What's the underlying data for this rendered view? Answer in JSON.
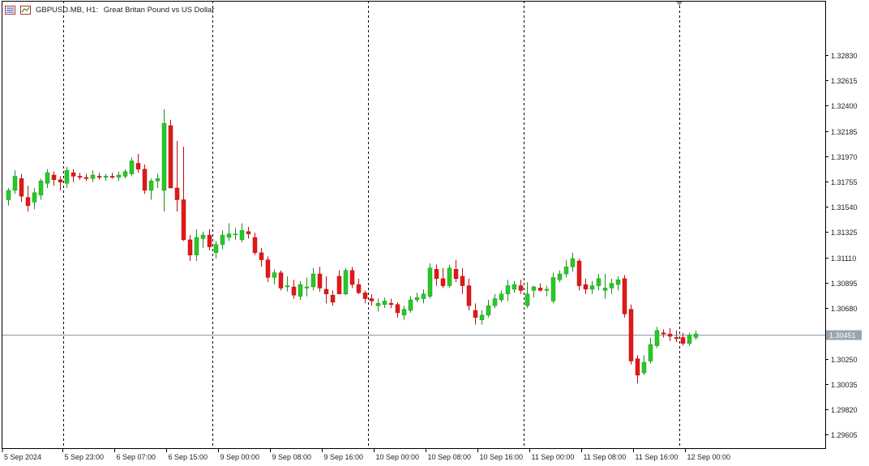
{
  "header": {
    "symbol": "GBPUSD.MB",
    "timeframe": "H1:",
    "description": "Great Britan Pound vs US Dollar"
  },
  "colors": {
    "bull": "#28c828",
    "bear": "#e01818",
    "wick": "#3a3a3a",
    "bid_line": "#8899aa",
    "grid": "#000000",
    "price_label_bg": "#9aa4ae"
  },
  "current_price": {
    "value": 1.30451,
    "label": "1.30451"
  },
  "chart_data": {
    "type": "candlestick",
    "ylim": [
      1.2949,
      1.3329
    ],
    "y_ticks": [
      "1.32830",
      "1.32615",
      "1.32400",
      "1.32185",
      "1.31970",
      "1.31755",
      "1.31540",
      "1.31325",
      "1.31110",
      "1.30895",
      "1.30680",
      "1.30250",
      "1.30035",
      "1.29820",
      "1.29605"
    ],
    "x_ticks": [
      {
        "label": "5 Sep 2024",
        "index": 0
      },
      {
        "label": "5 Sep 23:00",
        "index": 9
      },
      {
        "label": "6 Sep 07:00",
        "index": 17
      },
      {
        "label": "6 Sep 15:00",
        "index": 25
      },
      {
        "label": "9 Sep 00:00",
        "index": 33
      },
      {
        "label": "9 Sep 08:00",
        "index": 41
      },
      {
        "label": "9 Sep 16:00",
        "index": 49
      },
      {
        "label": "10 Sep 00:00",
        "index": 57
      },
      {
        "label": "10 Sep 08:00",
        "index": 65
      },
      {
        "label": "10 Sep 16:00",
        "index": 73
      },
      {
        "label": "11 Sep 00:00",
        "index": 81
      },
      {
        "label": "11 Sep 08:00",
        "index": 89
      },
      {
        "label": "11 Sep 16:00",
        "index": 97
      },
      {
        "label": "12 Sep 00:00",
        "index": 105
      }
    ],
    "separators": [
      9,
      32,
      56,
      80,
      104
    ],
    "candles": [
      [
        1.316,
        1.317,
        1.3155,
        1.3168
      ],
      [
        1.3168,
        1.3185,
        1.3165,
        1.318
      ],
      [
        1.3178,
        1.3182,
        1.3158,
        1.3163
      ],
      [
        1.3162,
        1.3172,
        1.315,
        1.3155
      ],
      [
        1.3158,
        1.317,
        1.3152,
        1.3166
      ],
      [
        1.3164,
        1.3178,
        1.316,
        1.3176
      ],
      [
        1.3174,
        1.3186,
        1.317,
        1.3183
      ],
      [
        1.3181,
        1.3184,
        1.3172,
        1.3177
      ],
      [
        1.3177,
        1.318,
        1.3168,
        1.3175
      ],
      [
        1.3174,
        1.3188,
        1.317,
        1.3185
      ],
      [
        1.3183,
        1.3186,
        1.3175,
        1.318
      ],
      [
        1.318,
        1.3183,
        1.3177,
        1.3179
      ],
      [
        1.3179,
        1.3182,
        1.3176,
        1.3178
      ],
      [
        1.3178,
        1.3185,
        1.3175,
        1.3181
      ],
      [
        1.318,
        1.3183,
        1.3177,
        1.3179
      ],
      [
        1.3179,
        1.3182,
        1.3176,
        1.318
      ],
      [
        1.318,
        1.3183,
        1.3178,
        1.3179
      ],
      [
        1.3179,
        1.3184,
        1.3176,
        1.3181
      ],
      [
        1.318,
        1.3186,
        1.3178,
        1.3184
      ],
      [
        1.3182,
        1.3196,
        1.318,
        1.3193
      ],
      [
        1.3191,
        1.3199,
        1.3183,
        1.3186
      ],
      [
        1.3186,
        1.319,
        1.3165,
        1.3168
      ],
      [
        1.3168,
        1.3178,
        1.316,
        1.3176
      ],
      [
        1.3176,
        1.3182,
        1.317,
        1.3178
      ],
      [
        1.3168,
        1.3237,
        1.315,
        1.3225
      ],
      [
        1.3223,
        1.3228,
        1.317,
        1.317
      ],
      [
        1.317,
        1.321,
        1.315,
        1.316
      ],
      [
        1.316,
        1.3205,
        1.3125,
        1.3126
      ],
      [
        1.3126,
        1.313,
        1.3108,
        1.3113
      ],
      [
        1.3113,
        1.3135,
        1.3108,
        1.3128
      ],
      [
        1.3127,
        1.3133,
        1.3119,
        1.313
      ],
      [
        1.313,
        1.3135,
        1.3117,
        1.312
      ],
      [
        1.3115,
        1.3125,
        1.311,
        1.3122
      ],
      [
        1.3122,
        1.3134,
        1.3118,
        1.313
      ],
      [
        1.3128,
        1.314,
        1.3125,
        1.3131
      ],
      [
        1.3131,
        1.3136,
        1.3126,
        1.3131
      ],
      [
        1.3126,
        1.314,
        1.3124,
        1.3134
      ],
      [
        1.3133,
        1.3137,
        1.3127,
        1.3131
      ],
      [
        1.3128,
        1.3132,
        1.3113,
        1.3115
      ],
      [
        1.3115,
        1.3119,
        1.3103,
        1.3109
      ],
      [
        1.3109,
        1.3112,
        1.309,
        1.3094
      ],
      [
        1.3094,
        1.3101,
        1.3088,
        1.3098
      ],
      [
        1.3098,
        1.31,
        1.3083,
        1.3085
      ],
      [
        1.3086,
        1.3095,
        1.3082,
        1.3087
      ],
      [
        1.3086,
        1.3092,
        1.3076,
        1.3079
      ],
      [
        1.3078,
        1.3091,
        1.3075,
        1.3088
      ],
      [
        1.3085,
        1.3094,
        1.3078,
        1.3086
      ],
      [
        1.3086,
        1.3102,
        1.3083,
        1.3097
      ],
      [
        1.3097,
        1.3103,
        1.3082,
        1.3085
      ],
      [
        1.3084,
        1.3095,
        1.3072,
        1.308
      ],
      [
        1.3079,
        1.3083,
        1.307,
        1.3073
      ],
      [
        1.3095,
        1.31,
        1.308,
        1.308
      ],
      [
        1.308,
        1.3102,
        1.3079,
        1.31
      ],
      [
        1.31,
        1.3103,
        1.3085,
        1.3088
      ],
      [
        1.3088,
        1.3093,
        1.308,
        1.3081
      ],
      [
        1.3081,
        1.3083,
        1.3072,
        1.3076
      ],
      [
        1.3076,
        1.308,
        1.307,
        1.3074
      ],
      [
        1.307,
        1.3076,
        1.3065,
        1.3072
      ],
      [
        1.3071,
        1.3077,
        1.3068,
        1.3074
      ],
      [
        1.3072,
        1.3076,
        1.3068,
        1.3071
      ],
      [
        1.3071,
        1.3073,
        1.306,
        1.3064
      ],
      [
        1.3062,
        1.307,
        1.3058,
        1.3067
      ],
      [
        1.3066,
        1.3078,
        1.3064,
        1.3075
      ],
      [
        1.3075,
        1.3081,
        1.3073,
        1.3077
      ],
      [
        1.3076,
        1.3084,
        1.3072,
        1.308
      ],
      [
        1.3078,
        1.3106,
        1.3076,
        1.3102
      ],
      [
        1.3101,
        1.3105,
        1.3087,
        1.3093
      ],
      [
        1.3093,
        1.3102,
        1.3085,
        1.3087
      ],
      [
        1.3087,
        1.3105,
        1.3085,
        1.3102
      ],
      [
        1.3101,
        1.3109,
        1.309,
        1.3093
      ],
      [
        1.3095,
        1.3102,
        1.308,
        1.3087
      ],
      [
        1.3087,
        1.3093,
        1.3066,
        1.307
      ],
      [
        1.3066,
        1.3072,
        1.3054,
        1.306
      ],
      [
        1.3058,
        1.3066,
        1.3054,
        1.3062
      ],
      [
        1.3062,
        1.3075,
        1.306,
        1.307
      ],
      [
        1.307,
        1.308,
        1.3068,
        1.3076
      ],
      [
        1.3075,
        1.3083,
        1.3073,
        1.308
      ],
      [
        1.308,
        1.3092,
        1.3074,
        1.3087
      ],
      [
        1.3084,
        1.3091,
        1.3081,
        1.3088
      ],
      [
        1.3087,
        1.3092,
        1.308,
        1.3083
      ],
      [
        1.307,
        1.309,
        1.3068,
        1.308
      ],
      [
        1.3083,
        1.3087,
        1.3077,
        1.3086
      ],
      [
        1.3085,
        1.3089,
        1.3082,
        1.3083
      ],
      [
        1.3083,
        1.3087,
        1.3078,
        1.3084
      ],
      [
        1.3074,
        1.3098,
        1.3072,
        1.3094
      ],
      [
        1.3092,
        1.31,
        1.309,
        1.3097
      ],
      [
        1.3097,
        1.3109,
        1.3094,
        1.3103
      ],
      [
        1.3103,
        1.3115,
        1.3099,
        1.311
      ],
      [
        1.3108,
        1.311,
        1.3083,
        1.3087
      ],
      [
        1.3088,
        1.3093,
        1.308,
        1.3084
      ],
      [
        1.3084,
        1.3091,
        1.308,
        1.3087
      ],
      [
        1.3087,
        1.3097,
        1.3083,
        1.3093
      ],
      [
        1.3083,
        1.3097,
        1.3076,
        1.3085
      ],
      [
        1.3085,
        1.3093,
        1.308,
        1.3089
      ],
      [
        1.3088,
        1.3095,
        1.3083,
        1.3092
      ],
      [
        1.3093,
        1.3096,
        1.306,
        1.3063
      ],
      [
        1.3067,
        1.3071,
        1.302,
        1.3023
      ],
      [
        1.3025,
        1.3028,
        1.3004,
        1.3011
      ],
      [
        1.3013,
        1.3028,
        1.3011,
        1.3022
      ],
      [
        1.3023,
        1.3043,
        1.3021,
        1.3037
      ],
      [
        1.3036,
        1.3052,
        1.3034,
        1.3049
      ],
      [
        1.3047,
        1.305,
        1.3043,
        1.3046
      ],
      [
        1.3046,
        1.3051,
        1.304,
        1.3044
      ],
      [
        1.3043,
        1.3049,
        1.3039,
        1.3042
      ],
      [
        1.3043,
        1.3047,
        1.3036,
        1.3038
      ],
      [
        1.3038,
        1.3047,
        1.3036,
        1.3045
      ],
      [
        1.3043,
        1.3049,
        1.3041,
        1.3046
      ]
    ]
  }
}
